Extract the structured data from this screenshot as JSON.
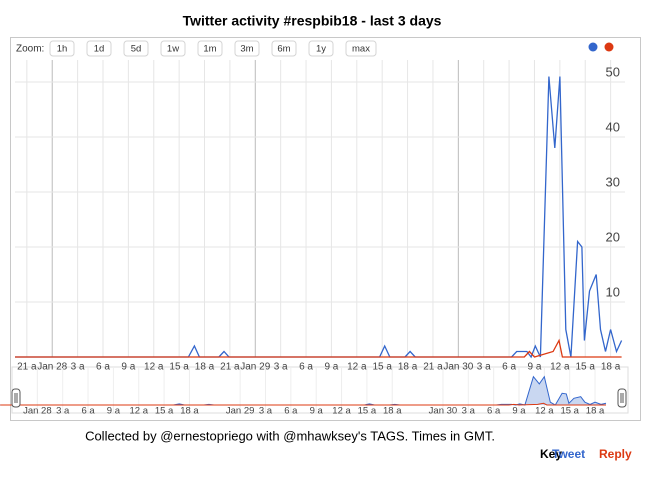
{
  "chart_data": {
    "type": "line",
    "title": "Twitter activity #respbib18 - last 3 days",
    "zoom_label": "Zoom:",
    "zoom_buttons": [
      "1h",
      "1d",
      "5d",
      "1w",
      "1m",
      "3m",
      "6m",
      "1y",
      "max"
    ],
    "xlim": [
      -4.4,
      67.7
    ],
    "xticks": [
      {
        "value": -3,
        "label": "21 a"
      },
      {
        "value": 0,
        "label": "Jan 28"
      },
      {
        "value": 3,
        "label": "3 a"
      },
      {
        "value": 6,
        "label": "6 a"
      },
      {
        "value": 9,
        "label": "9 a"
      },
      {
        "value": 12,
        "label": "12 a"
      },
      {
        "value": 15,
        "label": "15 a"
      },
      {
        "value": 18,
        "label": "18 a"
      },
      {
        "value": 21,
        "label": "21 a"
      },
      {
        "value": 24,
        "label": "Jan 29"
      },
      {
        "value": 27,
        "label": "3 a"
      },
      {
        "value": 30,
        "label": "6 a"
      },
      {
        "value": 33,
        "label": "9 a"
      },
      {
        "value": 36,
        "label": "12 a"
      },
      {
        "value": 39,
        "label": "15 a"
      },
      {
        "value": 42,
        "label": "18 a"
      },
      {
        "value": 45,
        "label": "21 a"
      },
      {
        "value": 48,
        "label": "Jan 30"
      },
      {
        "value": 51,
        "label": "3 a"
      },
      {
        "value": 54,
        "label": "6 a"
      },
      {
        "value": 57,
        "label": "9 a"
      },
      {
        "value": 60,
        "label": "12 a"
      },
      {
        "value": 63,
        "label": "15 a"
      },
      {
        "value": 66,
        "label": "18 a"
      }
    ],
    "ylim": [
      0,
      54
    ],
    "yticks": [
      10,
      20,
      30,
      40,
      50
    ],
    "grid": true,
    "legend": "top-right",
    "series": [
      {
        "name": "Tweet",
        "color": "#3366cc",
        "x": [
          -4.4,
          16.1,
          16.8,
          17.4,
          19.7,
          20.3,
          20.9,
          38.7,
          39.3,
          39.9,
          41.7,
          42.3,
          42.9,
          54.3,
          54.9,
          56.1,
          56.6,
          57.1,
          57.7,
          58.7,
          59.4,
          60.0,
          60.7,
          61.3,
          62.1,
          62.6,
          62.9,
          63.5,
          64.3,
          64.8,
          65.4,
          66.0,
          66.7,
          67.3
        ],
        "values": [
          0,
          0,
          2,
          0,
          0,
          1,
          0,
          0,
          2,
          0,
          0,
          1,
          0,
          0,
          1,
          1,
          0,
          2,
          0,
          51,
          38,
          51,
          5,
          0,
          21,
          20,
          3,
          12,
          15,
          5,
          1,
          5,
          1,
          3
        ]
      },
      {
        "name": "Reply",
        "color": "#dc3912",
        "x": [
          -4.4,
          55.8,
          56.4,
          57.0,
          59.2,
          59.9,
          60.3,
          67.3
        ],
        "values": [
          0,
          0,
          1,
          0,
          1,
          3,
          0,
          0
        ]
      }
    ],
    "navigator": {
      "xlim": [
        -3.0,
        69.9
      ],
      "xticks": [
        {
          "value": 0,
          "label": "Jan 28"
        },
        {
          "value": 3,
          "label": "3 a"
        },
        {
          "value": 6,
          "label": "6 a"
        },
        {
          "value": 9,
          "label": "9 a"
        },
        {
          "value": 12,
          "label": "12 a"
        },
        {
          "value": 15,
          "label": "15 a"
        },
        {
          "value": 18,
          "label": "18 a"
        },
        {
          "value": 24,
          "label": "Jan 29"
        },
        {
          "value": 27,
          "label": "3 a"
        },
        {
          "value": 30,
          "label": "6 a"
        },
        {
          "value": 33,
          "label": "9 a"
        },
        {
          "value": 36,
          "label": "12 a"
        },
        {
          "value": 39,
          "label": "15 a"
        },
        {
          "value": 42,
          "label": "18 a"
        },
        {
          "value": 48,
          "label": "Jan 30"
        },
        {
          "value": 51,
          "label": "3 a"
        },
        {
          "value": 54,
          "label": "6 a"
        },
        {
          "value": 57,
          "label": "9 a"
        },
        {
          "value": 60,
          "label": "12 a"
        },
        {
          "value": 63,
          "label": "15 a"
        },
        {
          "value": 66,
          "label": "18 a"
        }
      ]
    }
  },
  "footer": "Collected by @ernestopriego with @mhawksey's TAGS. Times in GMT.",
  "key": {
    "label": "Key"
  }
}
